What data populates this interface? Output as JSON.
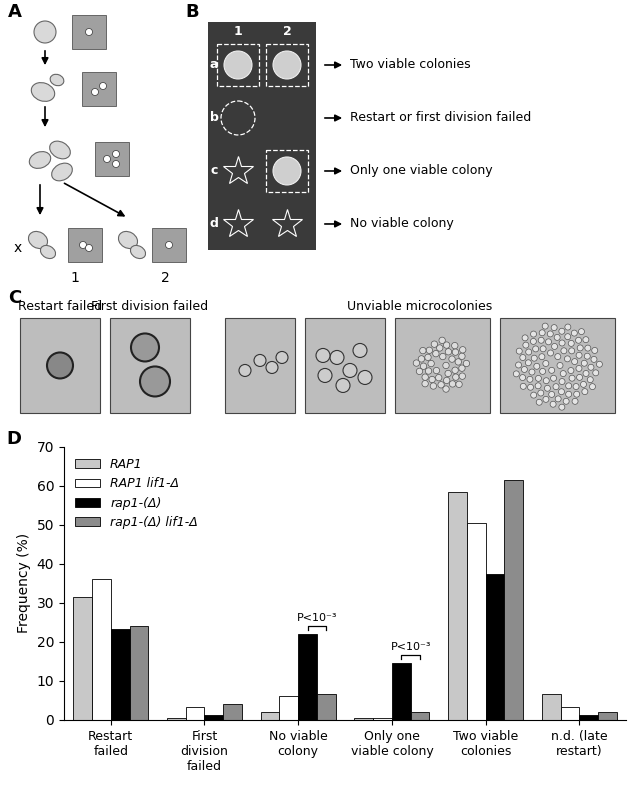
{
  "diagram": {
    "panel_A": {
      "label": "A",
      "discarded": "x",
      "daughters": [
        "1",
        "2"
      ]
    },
    "panel_B": {
      "label": "B",
      "columns": [
        "1",
        "2"
      ],
      "rows": [
        {
          "id": "a",
          "outcome": "Two viable colonies",
          "colonies": [
            true,
            true
          ]
        },
        {
          "id": "b",
          "outcome": "Restart or first division failed",
          "colonies": [
            null,
            null
          ]
        },
        {
          "id": "c",
          "outcome": "Only one viable colony",
          "colonies": [
            false,
            true
          ]
        },
        {
          "id": "d",
          "outcome": "No viable colony",
          "colonies": [
            false,
            false
          ]
        }
      ]
    },
    "panel_C": {
      "label": "C",
      "captions": [
        "Restart failed",
        "First division failed",
        "Unviable microcolonies"
      ]
    }
  },
  "chart_data": {
    "type": "bar",
    "panel_label": "D",
    "y_label": "Frequency (%)",
    "categories": [
      "Restart failed",
      "First division failed",
      "No viable colony",
      "Only one viable colony",
      "Two viable colonies",
      "n.d. (late restart)"
    ],
    "series": [
      {
        "name": "RAP1",
        "color": "#c8c8c8",
        "values": [
          31.5,
          0.5,
          2,
          0.5,
          58.5,
          6.5
        ]
      },
      {
        "name": "RAP1 lif1-Δ",
        "color": "#ffffff",
        "values": [
          36,
          3.3,
          6,
          0.5,
          50.5,
          3.3
        ]
      },
      {
        "name": "rap1-(Δ)",
        "color": "#000000",
        "values": [
          23.3,
          1.2,
          22,
          14.5,
          37.5,
          1.2
        ]
      },
      {
        "name": "rap1-(Δ) lif1-Δ",
        "color": "#8c8c8c",
        "values": [
          24,
          4,
          6.5,
          2,
          61.5,
          2
        ]
      }
    ],
    "ylim": [
      0,
      70
    ],
    "yticks": [
      0,
      10,
      20,
      30,
      40,
      50,
      60,
      70
    ],
    "grid": false,
    "legend": "upper left",
    "annotations": [
      {
        "text": "P<10⁻³",
        "category": "No viable colony",
        "between": [
          "rap1-(Δ)",
          "rap1-(Δ) lif1-Δ"
        ]
      },
      {
        "text": "P<10⁻³",
        "category": "Only one viable colony",
        "between": [
          "rap1-(Δ)",
          "rap1-(Δ) lif1-Δ"
        ]
      }
    ]
  }
}
